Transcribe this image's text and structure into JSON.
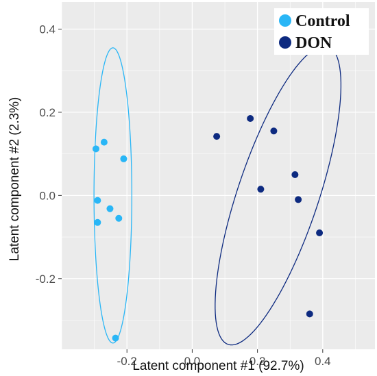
{
  "chart_data": {
    "type": "scatter",
    "xlabel": "Latent component #1 (92.7%)",
    "ylabel": "Latent component #2 (2.3%)",
    "xlim": [
      -0.4,
      0.56
    ],
    "ylim": [
      -0.37,
      0.465
    ],
    "x_ticks": [
      -0.2,
      0.0,
      0.2,
      0.4
    ],
    "x_tick_labels": [
      "-0.2",
      "0.0",
      "0.2",
      "0.4"
    ],
    "y_ticks": [
      -0.2,
      0.0,
      0.2,
      0.4
    ],
    "y_tick_labels": [
      "-0.2",
      "0.0",
      "0.2",
      "0.4"
    ],
    "grid": true,
    "background_color": "#ebebeb",
    "grid_color": "#ffffff",
    "legend_position": "top-right",
    "series": [
      {
        "name": "Control",
        "color": "#29b6f6",
        "points": [
          {
            "x": -0.295,
            "y": 0.112
          },
          {
            "x": -0.27,
            "y": 0.128
          },
          {
            "x": -0.21,
            "y": 0.088
          },
          {
            "x": -0.29,
            "y": -0.012
          },
          {
            "x": -0.252,
            "y": -0.032
          },
          {
            "x": -0.29,
            "y": -0.065
          },
          {
            "x": -0.225,
            "y": -0.055
          },
          {
            "x": -0.235,
            "y": -0.343
          }
        ],
        "ellipse": {
          "cx": -0.243,
          "cy": 0.0,
          "rx": 0.058,
          "ry": 0.355,
          "angle_deg": 0
        }
      },
      {
        "name": "DON",
        "color": "#0d2a80",
        "points": [
          {
            "x": 0.075,
            "y": 0.142
          },
          {
            "x": 0.178,
            "y": 0.185
          },
          {
            "x": 0.25,
            "y": 0.155
          },
          {
            "x": 0.315,
            "y": 0.05
          },
          {
            "x": 0.21,
            "y": 0.015
          },
          {
            "x": 0.325,
            "y": -0.01
          },
          {
            "x": 0.39,
            "y": -0.09
          },
          {
            "x": 0.36,
            "y": -0.285
          }
        ],
        "ellipse": {
          "cx": 0.263,
          "cy": 0.0,
          "rx": 0.12,
          "ry": 0.39,
          "angle_deg": 24
        }
      }
    ]
  }
}
